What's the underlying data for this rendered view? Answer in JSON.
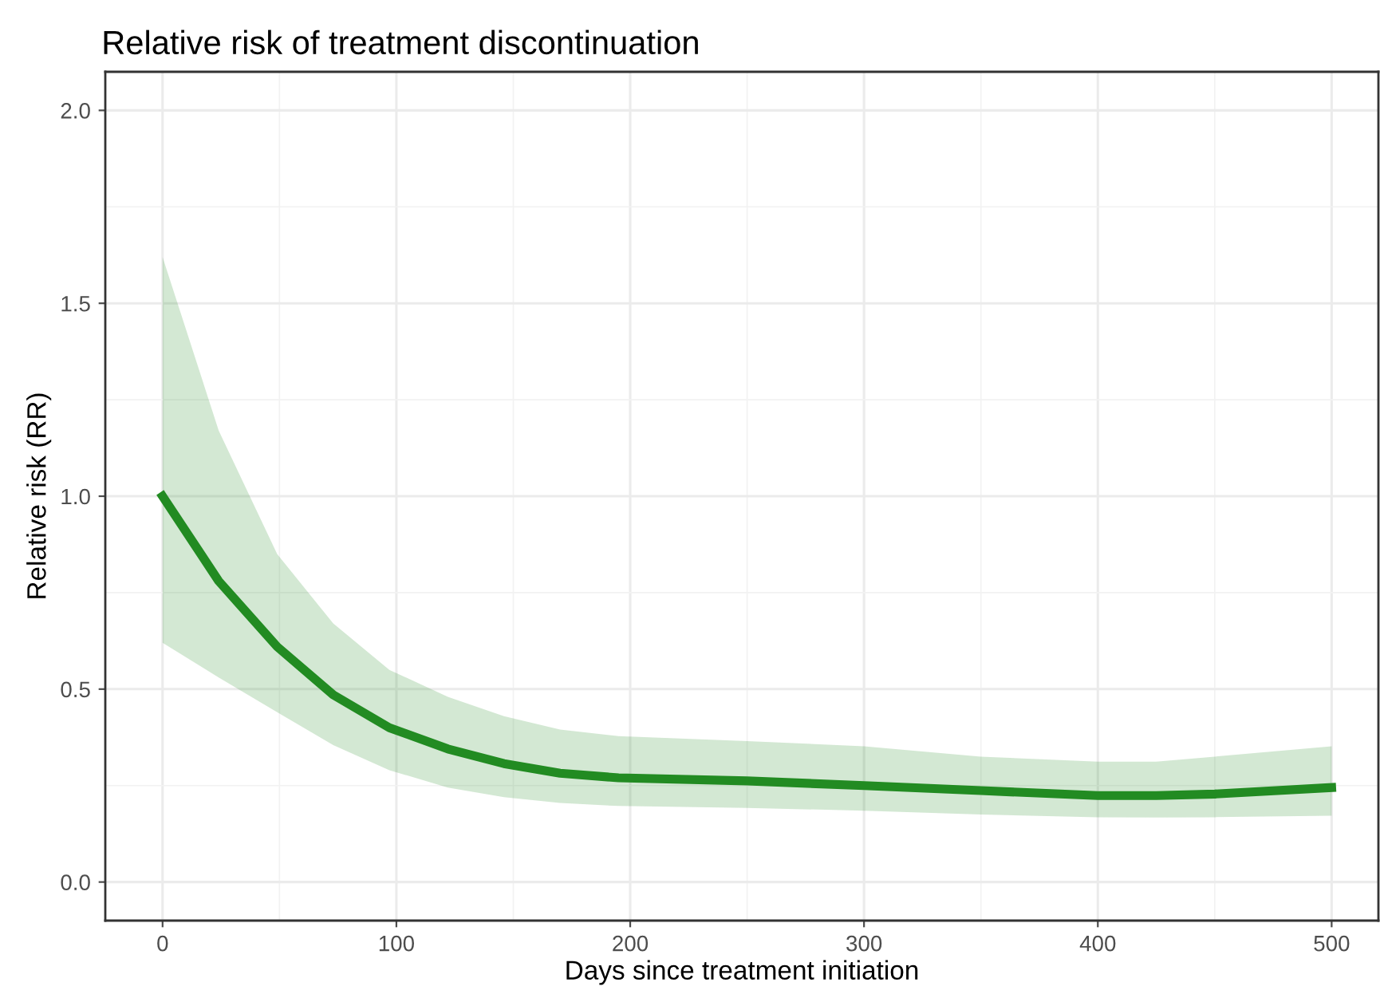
{
  "chart_data": {
    "type": "line",
    "title": "Relative risk of treatment discontinuation",
    "xlabel": "Days since treatment initiation",
    "ylabel": "Relative risk (RR)",
    "xlim": [
      -24.5,
      520
    ],
    "ylim": [
      -0.1,
      2.1
    ],
    "xticks": [
      0,
      100,
      200,
      300,
      400,
      500
    ],
    "yticks": [
      {
        "value": 0,
        "label": "0.0"
      },
      {
        "value": 0.5,
        "label": "0.5"
      },
      {
        "value": 1,
        "label": "1.0"
      },
      {
        "value": 1.5,
        "label": "1.5"
      },
      {
        "value": 2,
        "label": "2.0"
      }
    ],
    "grid": true,
    "marker": "none",
    "line_style": "solid",
    "series": [
      {
        "color": "#228b22",
        "x": [
          0,
          24,
          49,
          73,
          97,
          122,
          146,
          170,
          195,
          250,
          300,
          350,
          400,
          425,
          450,
          500
        ],
        "values": [
          1.0,
          0.78,
          0.61,
          0.485,
          0.4,
          0.345,
          0.307,
          0.282,
          0.27,
          0.262,
          0.25,
          0.237,
          0.224,
          0.224,
          0.228,
          0.245
        ],
        "upper": [
          1.62,
          1.17,
          0.85,
          0.67,
          0.55,
          0.48,
          0.43,
          0.395,
          0.378,
          0.365,
          0.352,
          0.325,
          0.312,
          0.312,
          0.325,
          0.352
        ],
        "lower": [
          0.62,
          0.53,
          0.44,
          0.355,
          0.29,
          0.245,
          0.22,
          0.205,
          0.197,
          0.192,
          0.185,
          0.175,
          0.168,
          0.167,
          0.168,
          0.172
        ]
      }
    ]
  }
}
